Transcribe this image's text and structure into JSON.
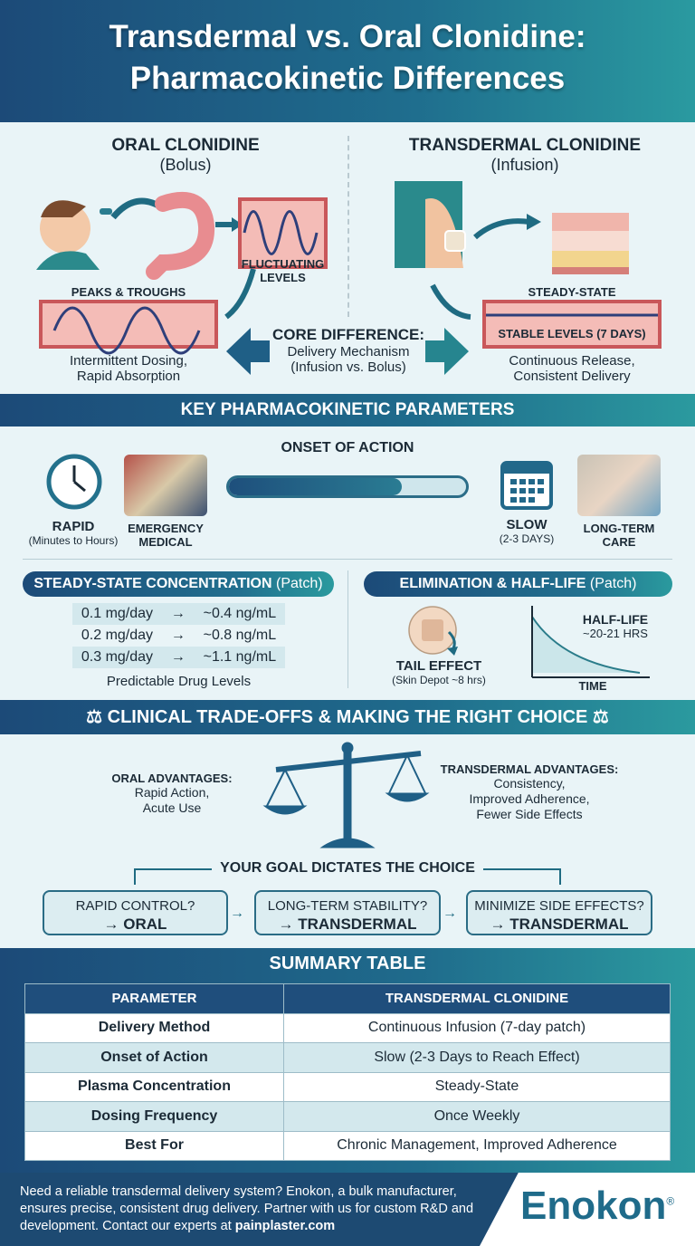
{
  "title": {
    "line1": "Transdermal vs. Oral Clonidine:",
    "line2": "Pharmacokinetic Differences"
  },
  "oral": {
    "heading": "ORAL CLONIDINE",
    "sub": "(Bolus)",
    "fluct": "FLUCTUATING LEVELS",
    "peaks": "PEAKS & TROUGHS",
    "desc1": "Intermittent Dosing,",
    "desc2": "Rapid Absorption"
  },
  "transdermal": {
    "heading": "TRANSDERMAL CLONIDINE",
    "sub": "(Infusion)",
    "steady": "STEADY-STATE",
    "stable": "STABLE LEVELS (7 DAYS)",
    "desc1": "Continuous Release,",
    "desc2": "Consistent Delivery"
  },
  "core": {
    "heading": "CORE DIFFERENCE:",
    "line1": "Delivery Mechanism",
    "line2": "(Infusion vs. Bolus)"
  },
  "key_params": {
    "banner": "KEY PHARMACOKINETIC PARAMETERS",
    "onset_title": "ONSET OF ACTION",
    "onset_bar_fill": 0.73,
    "rapid": "RAPID",
    "rapid_sub": "(Minutes to Hours)",
    "emergency": "EMERGENCY MEDICAL",
    "slow": "SLOW",
    "slow_sub": "(2-3 DAYS)",
    "longterm": "LONG-TERM CARE"
  },
  "steady_state": {
    "heading": "STEADY-STATE CONCENTRATION",
    "heading_suffix": "(Patch)",
    "rows": [
      {
        "dose": "0.1 mg/day",
        "arrow": "→",
        "conc": "~0.4 ng/mL"
      },
      {
        "dose": "0.2 mg/day",
        "arrow": "→",
        "conc": "~0.8 ng/mL"
      },
      {
        "dose": "0.3 mg/day",
        "arrow": "→",
        "conc": "~1.1 ng/mL"
      }
    ],
    "caption": "Predictable Drug Levels"
  },
  "elimination": {
    "heading": "ELIMINATION & HALF-LIFE",
    "heading_suffix": "(Patch)",
    "tail": "TAIL EFFECT",
    "tail_sub": "(Skin Depot ~8 hrs)",
    "halflife": "HALF-LIFE",
    "halflife_val": "~20-21 HRS",
    "time": "TIME"
  },
  "tradeoffs": {
    "banner": "CLINICAL TRADE-OFFS & MAKING THE RIGHT CHOICE",
    "oral_adv": "ORAL ADVANTAGES:",
    "oral_adv1": "Rapid Action,",
    "oral_adv2": "Acute Use",
    "trans_adv": "TRANSDERMAL ADVANTAGES:",
    "trans_adv1": "Consistency,",
    "trans_adv2": "Improved Adherence,",
    "trans_adv3": "Fewer Side Effects",
    "goal": "YOUR GOAL DICTATES THE CHOICE",
    "choices": [
      {
        "q": "RAPID CONTROL?",
        "a": "→ ORAL"
      },
      {
        "q": "LONG-TERM STABILITY?",
        "a": "→ TRANSDERMAL"
      },
      {
        "q": "MINIMIZE SIDE EFFECTS?",
        "a": "→ TRANSDERMAL"
      }
    ]
  },
  "summary": {
    "banner": "SUMMARY TABLE",
    "headers": [
      "PARAMETER",
      "TRANSDERMAL CLONIDINE"
    ],
    "rows": [
      [
        "Delivery Method",
        "Continuous Infusion (7-day patch)"
      ],
      [
        "Onset of Action",
        "Slow (2-3 Days to Reach Effect)"
      ],
      [
        "Plasma Concentration",
        "Steady-State"
      ],
      [
        "Dosing Frequency",
        "Once Weekly"
      ],
      [
        "Best For",
        "Chronic Management, Improved Adherence"
      ]
    ]
  },
  "footer": {
    "text": "Need a reliable transdermal delivery system? Enokon, a bulk manufacturer, ensures precise, consistent drug delivery. Partner with us for custom R&D and development. Contact our experts at ",
    "link": "painplaster.com",
    "logo": "Enokon",
    "reg": "®"
  },
  "colors": {
    "navy": "#1c4a78",
    "teal": "#2a9a9f",
    "vessel": "#c9575a"
  }
}
